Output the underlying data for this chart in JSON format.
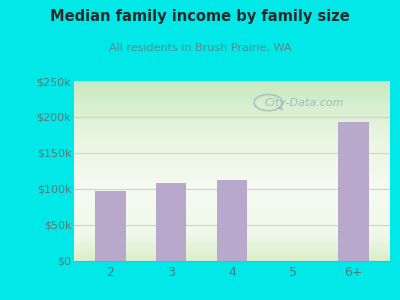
{
  "title": "Median family income by family size",
  "subtitle": "All residents in Brush Prairie, WA",
  "categories": [
    "2",
    "3",
    "4",
    "5",
    "6+"
  ],
  "values": [
    97000,
    108000,
    113000,
    0,
    193000
  ],
  "bar_color": "#b8a8cc",
  "bg_color": "#00e8e8",
  "ylim": [
    0,
    250000
  ],
  "yticks": [
    0,
    50000,
    100000,
    150000,
    200000,
    250000
  ],
  "ytick_labels": [
    "$0",
    "$50k",
    "$100k",
    "$150k",
    "$200k",
    "$250k"
  ],
  "title_color": "#2a2a2a",
  "subtitle_color": "#5a8a8a",
  "tick_color": "#5a7878",
  "watermark": "City-Data.com",
  "grid_color": "#c8d8c8",
  "plot_area_gradient": [
    [
      0.0,
      "#c8e8c0"
    ],
    [
      0.3,
      "#e8f5e0"
    ],
    [
      0.6,
      "#f5faf0"
    ],
    [
      0.85,
      "#eef8e8"
    ],
    [
      1.0,
      "#d8eec8"
    ]
  ]
}
